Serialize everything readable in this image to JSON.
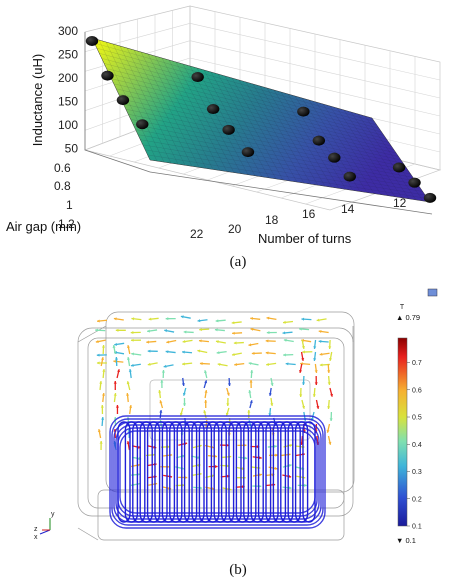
{
  "chart_data": [
    {
      "type": "surface3d",
      "title": "",
      "caption": "(a)",
      "zlabel": "Inductance (uH)",
      "ylabel": "Air gap (mm)",
      "xlabel": "Number of turns",
      "zticks": [
        "300",
        "250",
        "200",
        "150",
        "100",
        "50"
      ],
      "yticks": [
        "0.6",
        "0.8",
        "1",
        "1.2"
      ],
      "xticks": [
        "22",
        "20",
        "18",
        "16",
        "14",
        "12"
      ],
      "zlim": [
        0,
        300
      ],
      "colormap": [
        "#f9fb0e",
        "#8fcb4d",
        "#22a385",
        "#277b8e",
        "#3751a7",
        "#3d2ca4"
      ],
      "points": [
        {
          "turns": 23,
          "gap": 0.5,
          "inductance": 292
        },
        {
          "turns": 19,
          "gap": 0.55,
          "inductance": 250
        },
        {
          "turns": 15,
          "gap": 0.6,
          "inductance": 212
        },
        {
          "turns": 23,
          "gap": 0.7,
          "inductance": 215
        },
        {
          "turns": 19,
          "gap": 0.75,
          "inductance": 180
        },
        {
          "turns": 15,
          "gap": 0.8,
          "inductance": 150
        },
        {
          "turns": 12,
          "gap": 0.85,
          "inductance": 120
        },
        {
          "turns": 23,
          "gap": 0.9,
          "inductance": 165
        },
        {
          "turns": 19,
          "gap": 0.95,
          "inductance": 140
        },
        {
          "turns": 15,
          "gap": 1.0,
          "inductance": 120
        },
        {
          "turns": 12,
          "gap": 1.05,
          "inductance": 95
        },
        {
          "turns": 23,
          "gap": 1.15,
          "inductance": 120
        },
        {
          "turns": 19,
          "gap": 1.2,
          "inductance": 100
        },
        {
          "turns": 15,
          "gap": 1.2,
          "inductance": 85
        },
        {
          "turns": 12,
          "gap": 1.25,
          "inductance": 70
        }
      ]
    },
    {
      "type": "field_plot",
      "title": "",
      "caption": "(b)",
      "unit": "T",
      "max_label": "▲ 0.79",
      "min_label": "▼ 0.1",
      "colorbar_ticks": [
        "0.7",
        "0.6",
        "0.5",
        "0.4",
        "0.3",
        "0.2",
        "0.1"
      ],
      "colormap": [
        "#8b0000",
        "#e8201e",
        "#f6b031",
        "#d8e23c",
        "#7fe0b0",
        "#3fb5d9",
        "#2f4fd2",
        "#1a1a9a"
      ],
      "axes_triad": {
        "y": "y",
        "z": "z",
        "x": "x"
      }
    }
  ]
}
